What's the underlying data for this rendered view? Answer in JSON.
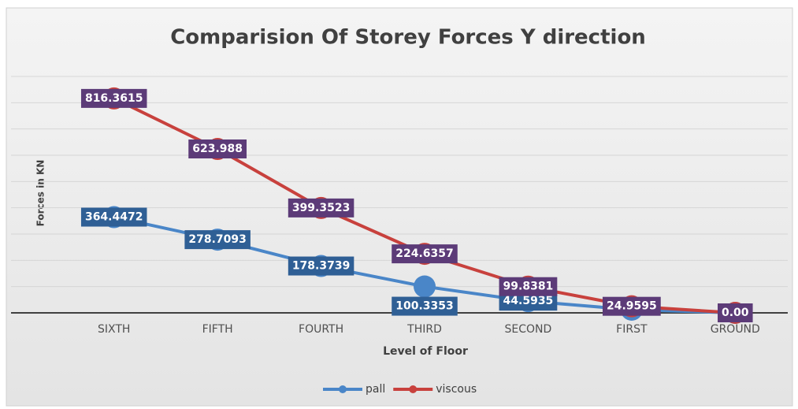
{
  "chart_data": {
    "type": "line",
    "title": "Comparision Of Storey Forces Y direction",
    "xlabel": "Level of Floor",
    "ylabel": "Forces in KN",
    "categories": [
      "SIXTH",
      "FIFTH",
      "FOURTH",
      "THIRD",
      "SECOND",
      "FIRST",
      "GROUND"
    ],
    "series": [
      {
        "name": "pall",
        "color": "#4a86c8",
        "label_color": "#2f5f95",
        "values": [
          364.4472,
          278.7093,
          178.3739,
          100.3353,
          44.5935,
          12,
          0
        ],
        "value_labels": [
          "364.4472",
          "278.7093",
          "178.3739",
          "100.3353",
          "44.5935",
          null,
          null
        ]
      },
      {
        "name": "viscous",
        "color": "#c8413d",
        "label_color": "#5c3b78",
        "values": [
          816.3615,
          623.988,
          399.3523,
          224.6357,
          99.8381,
          24.9595,
          0
        ],
        "value_labels": [
          "816.3615",
          "623.988",
          "399.3523",
          "224.6357",
          "99.8381",
          "24.9595",
          "0.00"
        ]
      }
    ],
    "ylim": [
      0,
      900
    ],
    "yticks": [
      0,
      100,
      200,
      300,
      400,
      500,
      600,
      700,
      800,
      900
    ],
    "grid": true
  }
}
